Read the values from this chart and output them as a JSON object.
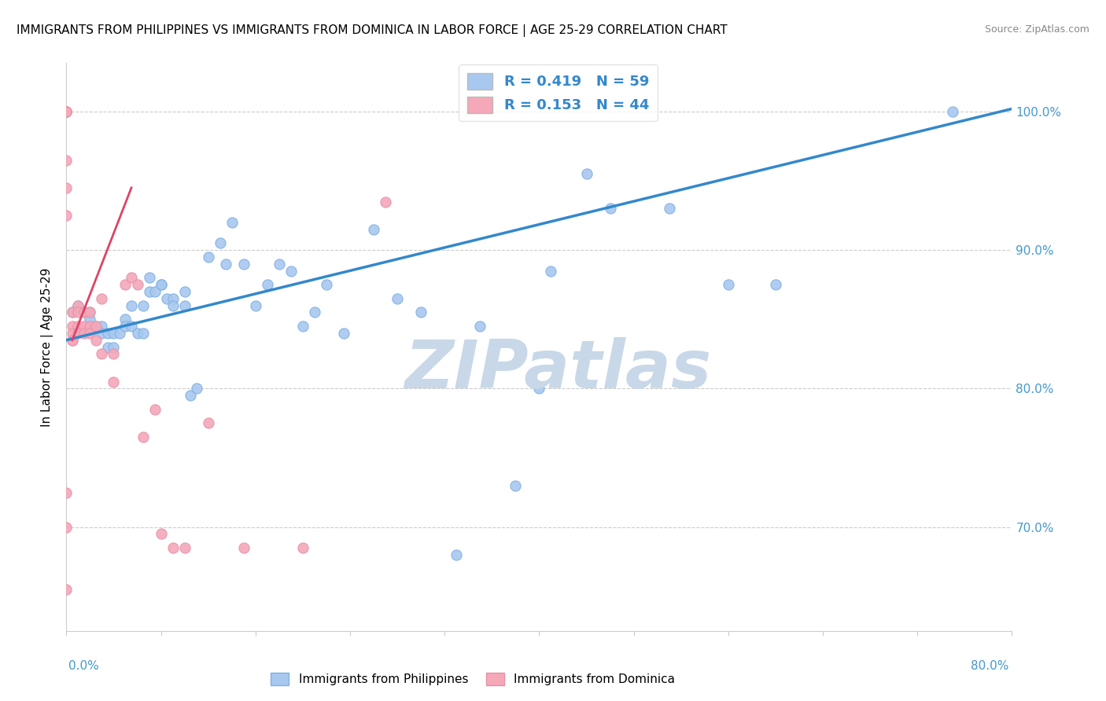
{
  "title": "IMMIGRANTS FROM PHILIPPINES VS IMMIGRANTS FROM DOMINICA IN LABOR FORCE | AGE 25-29 CORRELATION CHART",
  "source": "Source: ZipAtlas.com",
  "ylabel": "In Labor Force | Age 25-29",
  "xmin": 0.0,
  "xmax": 0.8,
  "ymin": 0.625,
  "ymax": 1.035,
  "yticks": [
    0.7,
    0.8,
    0.9,
    1.0
  ],
  "ytick_labels": [
    "70.0%",
    "80.0%",
    "90.0%",
    "100.0%"
  ],
  "grid_color": "#cccccc",
  "watermark": "ZIPatlas",
  "watermark_color": "#c8d8e8",
  "blue_color": "#a8c8f0",
  "pink_color": "#f4a8b8",
  "blue_edge": "#7fb0e0",
  "pink_edge": "#e890a8",
  "blue_R": 0.419,
  "blue_N": 59,
  "pink_R": 0.153,
  "pink_N": 44,
  "blue_trend_x0": 0.0,
  "blue_trend_x1": 0.8,
  "blue_trend_y0": 0.835,
  "blue_trend_y1": 1.002,
  "pink_trend_x0": 0.005,
  "pink_trend_x1": 0.055,
  "pink_trend_y0": 0.835,
  "pink_trend_y1": 0.945,
  "blue_points_x": [
    0.005,
    0.01,
    0.015,
    0.02,
    0.02,
    0.025,
    0.03,
    0.03,
    0.035,
    0.035,
    0.04,
    0.04,
    0.045,
    0.05,
    0.05,
    0.055,
    0.055,
    0.06,
    0.065,
    0.065,
    0.07,
    0.07,
    0.075,
    0.08,
    0.08,
    0.085,
    0.09,
    0.09,
    0.1,
    0.1,
    0.105,
    0.11,
    0.12,
    0.13,
    0.135,
    0.14,
    0.15,
    0.16,
    0.17,
    0.18,
    0.19,
    0.2,
    0.21,
    0.22,
    0.235,
    0.26,
    0.28,
    0.3,
    0.33,
    0.35,
    0.38,
    0.41,
    0.44,
    0.46,
    0.51,
    0.56,
    0.6,
    0.4,
    0.75
  ],
  "blue_points_y": [
    0.855,
    0.86,
    0.855,
    0.855,
    0.85,
    0.845,
    0.845,
    0.84,
    0.84,
    0.83,
    0.84,
    0.83,
    0.84,
    0.85,
    0.845,
    0.845,
    0.86,
    0.84,
    0.84,
    0.86,
    0.88,
    0.87,
    0.87,
    0.875,
    0.875,
    0.865,
    0.865,
    0.86,
    0.87,
    0.86,
    0.795,
    0.8,
    0.895,
    0.905,
    0.89,
    0.92,
    0.89,
    0.86,
    0.875,
    0.89,
    0.885,
    0.845,
    0.855,
    0.875,
    0.84,
    0.915,
    0.865,
    0.855,
    0.68,
    0.845,
    0.73,
    0.885,
    0.955,
    0.93,
    0.93,
    0.875,
    0.875,
    0.8,
    1.0
  ],
  "pink_points_x": [
    0.0,
    0.0,
    0.0,
    0.0,
    0.0,
    0.0,
    0.0,
    0.005,
    0.005,
    0.005,
    0.005,
    0.005,
    0.01,
    0.01,
    0.01,
    0.01,
    0.015,
    0.015,
    0.015,
    0.02,
    0.02,
    0.02,
    0.025,
    0.025,
    0.03,
    0.03,
    0.04,
    0.04,
    0.05,
    0.055,
    0.06,
    0.065,
    0.075,
    0.08,
    0.09,
    0.1,
    0.12,
    0.15,
    0.2,
    0.27,
    0.0,
    0.0,
    0.0,
    0.0
  ],
  "pink_points_y": [
    1.0,
    1.0,
    1.0,
    1.0,
    1.0,
    0.965,
    0.945,
    0.855,
    0.845,
    0.84,
    0.835,
    0.835,
    0.86,
    0.855,
    0.845,
    0.84,
    0.855,
    0.845,
    0.84,
    0.855,
    0.845,
    0.84,
    0.845,
    0.835,
    0.865,
    0.825,
    0.825,
    0.805,
    0.875,
    0.88,
    0.875,
    0.765,
    0.785,
    0.695,
    0.685,
    0.685,
    0.775,
    0.685,
    0.685,
    0.935,
    0.925,
    0.725,
    0.7,
    0.655
  ]
}
